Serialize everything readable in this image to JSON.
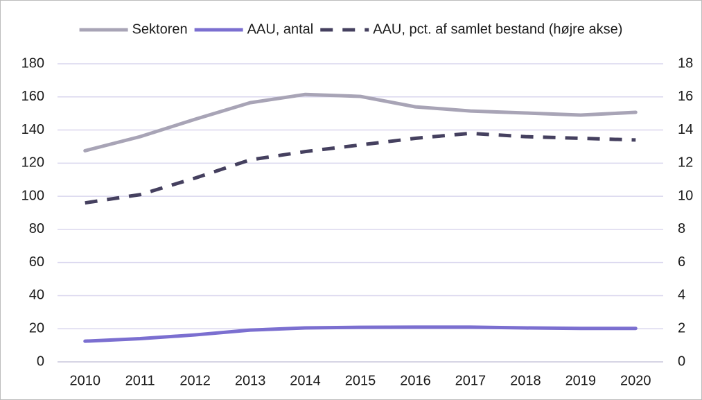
{
  "chart_data": {
    "type": "line",
    "categories": [
      "2010",
      "2011",
      "2012",
      "2013",
      "2014",
      "2015",
      "2016",
      "2017",
      "2018",
      "2019",
      "2020"
    ],
    "series": [
      {
        "name": "Sektoren",
        "color": "#a8a4b6",
        "values": [
          127.5,
          136,
          146.5,
          156.5,
          161.5,
          160.3,
          154,
          151.5,
          150.3,
          149,
          150.7
        ]
      },
      {
        "name": "AAU, antal",
        "color": "#7b6fd0",
        "values": [
          12.5,
          14,
          16.3,
          19.2,
          20.5,
          20.9,
          21,
          21,
          20.5,
          20.2,
          20.2
        ]
      },
      {
        "name": "AAU, pct. af samlet bestand (højre akse)",
        "color": "#45405f",
        "dashed": true,
        "axis": "y2",
        "values": [
          9.6,
          10.1,
          11.1,
          12.2,
          12.7,
          13.1,
          13.5,
          13.8,
          13.6,
          13.5,
          13.4
        ]
      }
    ],
    "ylim": [
      0,
      180
    ],
    "yticks": [
      0,
      20,
      40,
      60,
      80,
      100,
      120,
      140,
      160,
      180
    ],
    "y2lim": [
      0,
      18
    ],
    "y2ticks": [
      0,
      2,
      4,
      6,
      8,
      10,
      12,
      14,
      16,
      18
    ],
    "grid": true,
    "legend": "top"
  }
}
